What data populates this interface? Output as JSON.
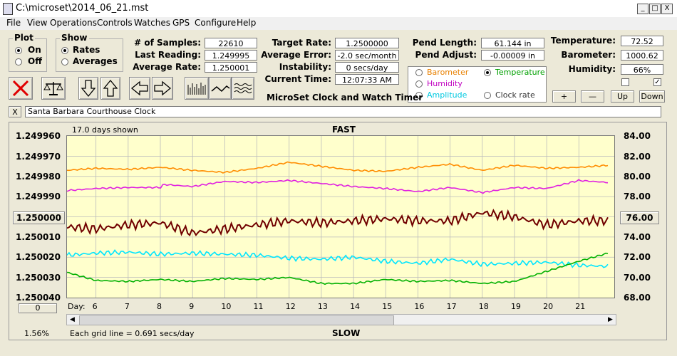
{
  "window": {
    "title": "C:\\microset\\2014_06_21.mst",
    "min": "_",
    "max": "□",
    "close": "X"
  },
  "menu": [
    "File",
    "View",
    "Operations",
    "Controls",
    "Watches",
    "GPS",
    "Configure",
    "Help"
  ],
  "plot_group": {
    "title": "Plot",
    "on": "On",
    "off": "Off"
  },
  "show_group": {
    "title": "Show",
    "rates": "Rates",
    "averages": "Averages"
  },
  "stats": {
    "samples_label": "# of Samples:",
    "samples": "22610",
    "last_label": "Last Reading:",
    "last": "1.249995",
    "avg_label": "Average Rate:",
    "avg": "1.250001",
    "target_label": "Target Rate:",
    "target": "1.2500000",
    "error_label": "Average Error:",
    "error": "-2.0 sec/month",
    "instab_label": "Instability:",
    "instab": "0 secs/day",
    "time_label": "Current Time:",
    "time": "12:07:33 AM",
    "pend_len_label": "Pend Length:",
    "pend_len": "61.144 in",
    "pend_adj_label": "Pend Adjust:",
    "pend_adj": "-0.00009 in",
    "temp_label": "Temperature:",
    "temp": "72.52",
    "baro_label": "Barometer:",
    "baro": "1000.62",
    "hum_label": "Humidity:",
    "hum": "66%"
  },
  "app_name": "MicroSet Clock and Watch Timer",
  "sensors": {
    "barometer": "Barometer",
    "temperature": "Temperature",
    "humidity": "Humidity",
    "amplitude": "Amplitude",
    "clock_rate": "Clock rate"
  },
  "scale_buttons": {
    "plus": "+",
    "minus": "—",
    "up": "Up",
    "down": "Down"
  },
  "description": {
    "close": "X",
    "value": "Santa Barbara Courthouse Clock"
  },
  "chart_header": {
    "days_shown": "17.0 days shown",
    "fast": "FAST",
    "slow": "SLOW",
    "grid_note": "Each grid line = 0.691 secs/day",
    "percent": "1.56%",
    "day_label": "Day:",
    "left_box": "1.250000",
    "right_box": "76.00",
    "bottom_box": "0"
  },
  "colors": {
    "barometer": "#ff8c00",
    "humidity": "#e020e0",
    "rate": "#700000",
    "amplitude": "#00e5ff",
    "temperature": "#00b000",
    "plot_bg": "#FFFFCC"
  },
  "chart_data": {
    "type": "line",
    "x_label": "Day:",
    "x_ticks": [
      "6",
      "7",
      "8",
      "9",
      "10",
      "11",
      "12",
      "13",
      "14",
      "15",
      "16",
      "17",
      "18",
      "19",
      "20",
      "21"
    ],
    "y_left_ticks": [
      "1.249960",
      "1.249970",
      "1.249980",
      "1.249990",
      "1.250000",
      "1.250010",
      "1.250020",
      "1.250030",
      "1.250040"
    ],
    "y_right_ticks": [
      "84.00",
      "82.00",
      "80.00",
      "78.00",
      "76.00",
      "74.00",
      "72.00",
      "70.00",
      "68.00"
    ],
    "y_left_range": [
      1.24996,
      1.25004
    ],
    "y_left_inverted": true,
    "y_right_range": [
      68,
      84
    ],
    "x_range": [
      5.1,
      22.1
    ],
    "series": [
      {
        "color": "barometer",
        "axis": "right",
        "x": [
          5.1,
          6,
          7,
          8,
          9,
          10,
          11,
          12,
          13,
          14,
          15,
          16,
          17,
          18,
          19,
          20,
          21,
          21.9
        ],
        "y": [
          80.6,
          80.8,
          80.7,
          80.9,
          80.6,
          80.4,
          80.8,
          81.4,
          81.0,
          80.6,
          80.5,
          80.9,
          81.2,
          80.6,
          81.1,
          80.8,
          80.9,
          81.1
        ]
      },
      {
        "color": "humidity",
        "axis": "right",
        "x": [
          5.1,
          6,
          7,
          8,
          8.1,
          9,
          10,
          11,
          12,
          13,
          14,
          15,
          16,
          17,
          18,
          19,
          20,
          21,
          21.9
        ],
        "y": [
          78.6,
          78.8,
          78.9,
          78.9,
          79.2,
          79.0,
          79.5,
          79.4,
          79.6,
          79.3,
          79.0,
          78.8,
          78.5,
          78.9,
          78.4,
          78.9,
          78.8,
          79.6,
          79.4
        ]
      },
      {
        "color": "rate",
        "axis": "left",
        "x": [
          5.1,
          6,
          7,
          8,
          9,
          10,
          11,
          12,
          13,
          14,
          15,
          16,
          17,
          18,
          19,
          20,
          21,
          21.9
        ],
        "y": [
          1.250005,
          1.250006,
          1.250004,
          1.250003,
          1.250008,
          1.250006,
          1.250004,
          1.250002,
          1.250003,
          1.250002,
          1.250001,
          1.250002,
          1.250002,
          1.249998,
          1.25,
          1.250004,
          1.250002,
          1.250002
        ]
      },
      {
        "color": "amplitude",
        "axis": "right",
        "x": [
          5.1,
          6,
          7,
          8,
          9,
          10,
          11,
          12,
          13,
          14,
          15,
          16,
          17,
          18,
          19,
          20,
          21,
          21.9
        ],
        "y": [
          72.2,
          72.4,
          72.5,
          72.3,
          72.4,
          72.3,
          72.2,
          71.9,
          71.8,
          72.0,
          71.6,
          71.4,
          71.8,
          71.3,
          71.4,
          71.5,
          71.2,
          71.1
        ]
      },
      {
        "color": "temperature",
        "axis": "right",
        "x": [
          5.1,
          6,
          7,
          8,
          9,
          10,
          11,
          12,
          13,
          14,
          15,
          16,
          17,
          18,
          19,
          20,
          21,
          21.9
        ],
        "y": [
          70.5,
          69.7,
          69.6,
          69.8,
          69.6,
          69.9,
          69.8,
          70.0,
          69.4,
          69.4,
          69.8,
          69.6,
          69.7,
          69.4,
          69.6,
          70.6,
          71.6,
          72.4
        ]
      }
    ]
  }
}
